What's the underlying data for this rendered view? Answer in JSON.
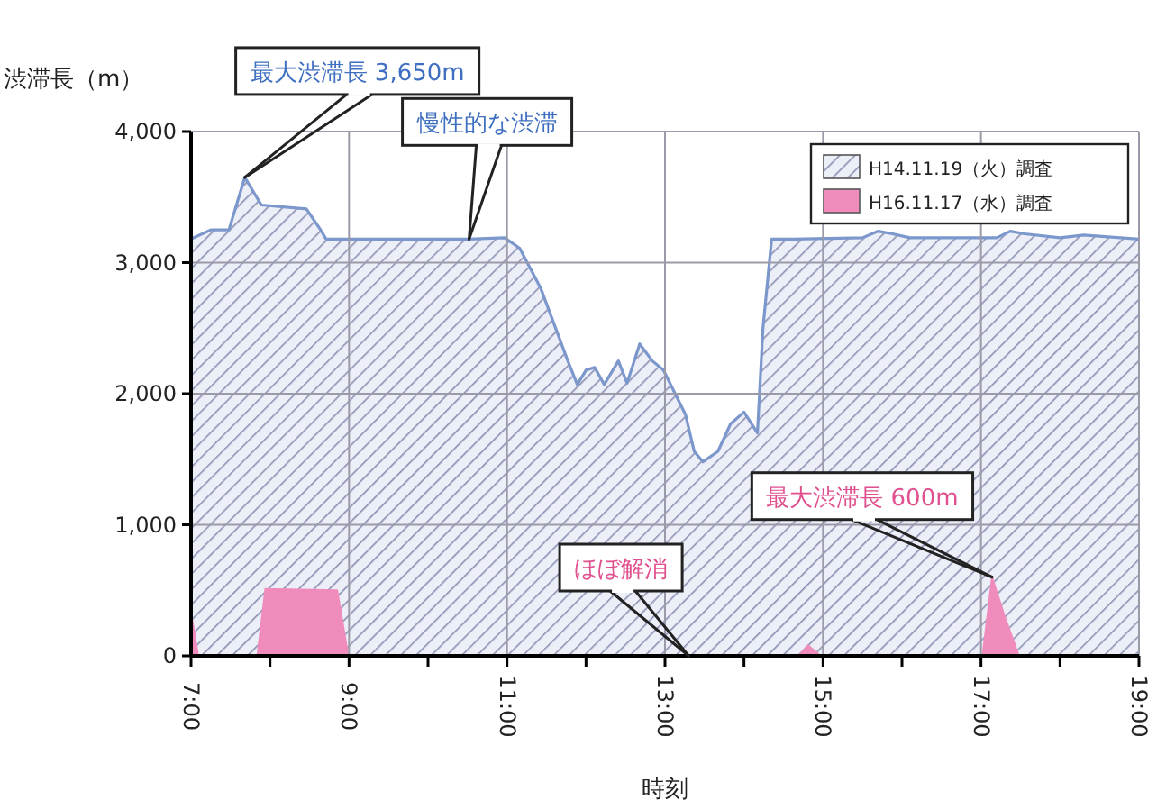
{
  "chart_data": {
    "type": "area",
    "xlabel": "時刻",
    "ylabel": "渋滞長（m）",
    "xlim": [
      7,
      19
    ],
    "ylim": [
      0,
      4000
    ],
    "xticks": [
      {
        "value": 7,
        "label": "7:00"
      },
      {
        "value": 8,
        "label": null
      },
      {
        "value": 9,
        "label": "9:00"
      },
      {
        "value": 10,
        "label": null
      },
      {
        "value": 11,
        "label": "11:00"
      },
      {
        "value": 12,
        "label": null
      },
      {
        "value": 13,
        "label": "13:00"
      },
      {
        "value": 14,
        "label": null
      },
      {
        "value": 15,
        "label": "15:00"
      },
      {
        "value": 16,
        "label": null
      },
      {
        "value": 17,
        "label": "17:00"
      },
      {
        "value": 18,
        "label": null
      },
      {
        "value": 19,
        "label": "19:00"
      }
    ],
    "yticks": [
      0,
      {
        "value": 1000,
        "label": "1,000"
      },
      {
        "value": 2000,
        "label": "2,000"
      },
      {
        "value": 3000,
        "label": "3,000"
      },
      {
        "value": 4000,
        "label": "4,000"
      }
    ],
    "grid": true,
    "legend": "top right",
    "series": [
      {
        "name": "H14.11.19（火）調査",
        "color": "#7b97cc",
        "x": [
          7.0,
          7.25,
          7.48,
          7.68,
          7.89,
          8.46,
          8.64,
          8.71,
          10.52,
          10.97,
          11.16,
          11.43,
          11.77,
          11.89,
          12.0,
          12.11,
          12.23,
          12.41,
          12.52,
          12.68,
          12.84,
          12.98,
          13.26,
          13.37,
          13.48,
          13.67,
          13.83,
          14.0,
          14.17,
          14.24,
          14.35,
          14.63,
          15.5,
          15.7,
          15.88,
          16.1,
          17.2,
          17.37,
          17.55,
          18.0,
          18.3,
          19.0
        ],
        "values": [
          3180,
          3250,
          3250,
          3650,
          3440,
          3410,
          3250,
          3180,
          3180,
          3190,
          3110,
          2800,
          2250,
          2070,
          2180,
          2200,
          2070,
          2250,
          2080,
          2380,
          2250,
          2180,
          1840,
          1560,
          1480,
          1560,
          1770,
          1860,
          1700,
          2500,
          3180,
          3180,
          3190,
          3240,
          3220,
          3190,
          3190,
          3240,
          3220,
          3190,
          3210,
          3180
        ]
      },
      {
        "name": "H16.11.17（水）調査",
        "color": "#f08cbc",
        "x": [
          7.0,
          7.09,
          7.84,
          7.94,
          8.85,
          8.99,
          14.69,
          14.81,
          14.97,
          17.02,
          17.14,
          17.3,
          17.48,
          19.0
        ],
        "values": [
          330,
          0,
          0,
          510,
          500,
          0,
          0,
          80,
          0,
          0,
          600,
          300,
          0,
          0
        ]
      }
    ],
    "annotations": [
      {
        "text": "最大渋滞長 3,650m",
        "x": 7.68,
        "y": 3650
      },
      {
        "text": "慢性的な渋滞",
        "x": 10.52,
        "y": 3180
      },
      {
        "text": "ほぼ解消",
        "x": 13.3,
        "y": 0
      },
      {
        "text": "最大渋滞長 600m",
        "x": 17.14,
        "y": 600
      }
    ]
  }
}
